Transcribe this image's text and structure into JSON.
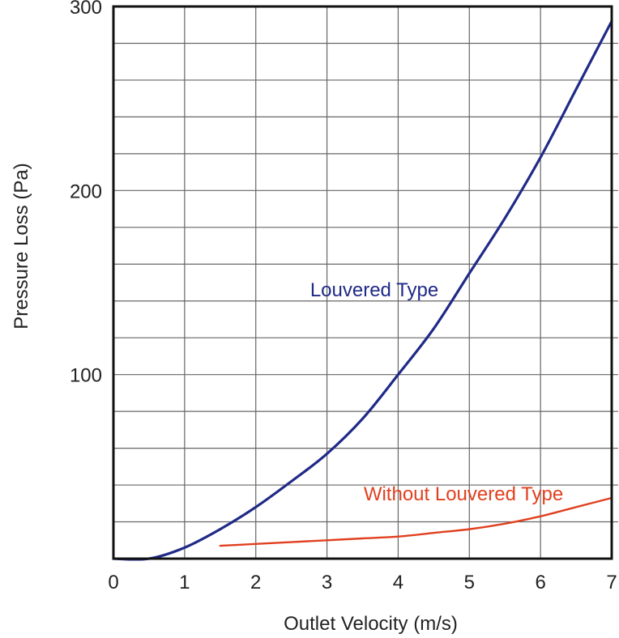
{
  "chart_data": {
    "type": "line",
    "title": "",
    "xlabel": "Outlet Velocity (m/s)",
    "ylabel": "Pressure Loss (Pa)",
    "xlim": [
      0,
      7
    ],
    "ylim": [
      0,
      300
    ],
    "x_ticks": [
      "0",
      "1",
      "2",
      "3",
      "4",
      "5",
      "6",
      "7"
    ],
    "y_ticks": [
      "100",
      "200",
      "300"
    ],
    "grid": true,
    "series": [
      {
        "name": "Louvered Type",
        "color": "#1f2a87",
        "points": [
          [
            0,
            0
          ],
          [
            0.5,
            0
          ],
          [
            1,
            6
          ],
          [
            1.5,
            16
          ],
          [
            2,
            28
          ],
          [
            2.5,
            42
          ],
          [
            3,
            57
          ],
          [
            3.5,
            76
          ],
          [
            4,
            100
          ],
          [
            4.5,
            125
          ],
          [
            5,
            155
          ],
          [
            5.5,
            185
          ],
          [
            6,
            218
          ],
          [
            6.5,
            255
          ],
          [
            7,
            292
          ]
        ]
      },
      {
        "name": "Without Louvered Type",
        "color": "#e0401f",
        "points": [
          [
            1.5,
            7
          ],
          [
            2,
            8
          ],
          [
            2.5,
            9
          ],
          [
            3,
            10
          ],
          [
            3.5,
            11
          ],
          [
            4,
            12
          ],
          [
            4.5,
            14
          ],
          [
            5,
            16
          ],
          [
            5.5,
            19
          ],
          [
            6,
            23
          ],
          [
            6.5,
            28
          ],
          [
            7,
            33
          ]
        ]
      }
    ]
  }
}
